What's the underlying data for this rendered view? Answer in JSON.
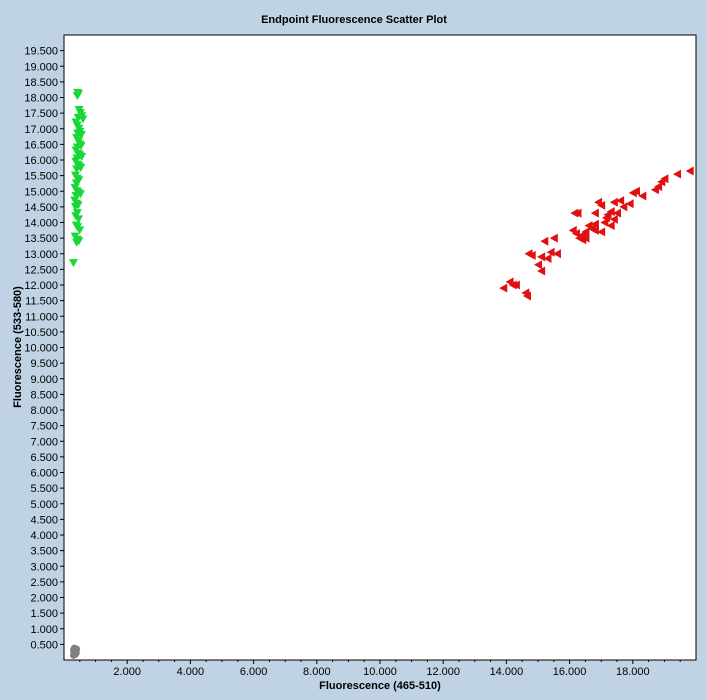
{
  "chart_data": {
    "type": "scatter",
    "title": "Endpoint Fluorescence Scatter Plot",
    "xlabel": "Fluorescence (465-510)",
    "ylabel": "Fluorescence (533-580)",
    "xlim": [
      0,
      20000
    ],
    "ylim": [
      0,
      20000
    ],
    "x_ticks": [
      2000,
      4000,
      6000,
      8000,
      10000,
      12000,
      14000,
      16000,
      18000
    ],
    "x_tick_labels": [
      "2.000",
      "4.000",
      "6.000",
      "8.000",
      "10.000",
      "12.000",
      "14.000",
      "16.000",
      "18.000"
    ],
    "y_ticks": [
      500,
      1000,
      1500,
      2000,
      2500,
      3000,
      3500,
      4000,
      4500,
      5000,
      5500,
      6000,
      6500,
      7000,
      7500,
      8000,
      8500,
      9000,
      9500,
      10000,
      10500,
      11000,
      11500,
      12000,
      12500,
      13000,
      13500,
      14000,
      14500,
      15000,
      15500,
      16000,
      16500,
      17000,
      17500,
      18000,
      18500,
      19000,
      19500
    ],
    "y_tick_labels": [
      "0.500",
      "1.000",
      "1.500",
      "2.000",
      "2.500",
      "3.000",
      "3.500",
      "4.000",
      "4.500",
      "5.000",
      "5.500",
      "6.000",
      "6.500",
      "7.000",
      "7.500",
      "8.000",
      "8.500",
      "9.000",
      "9.500",
      "10.000",
      "10.500",
      "11.000",
      "11.500",
      "12.000",
      "12.500",
      "13.000",
      "13.500",
      "14.000",
      "14.500",
      "15.000",
      "15.500",
      "16.000",
      "16.500",
      "17.000",
      "17.500",
      "18.000",
      "18.500",
      "19.000",
      "19.500"
    ],
    "grid": false,
    "series": [
      {
        "marker": "triangle-down",
        "color": "#18d838",
        "points": [
          [
            430,
            18150
          ],
          [
            460,
            18100
          ],
          [
            420,
            18050
          ],
          [
            480,
            17600
          ],
          [
            520,
            17500
          ],
          [
            560,
            17400
          ],
          [
            600,
            17300
          ],
          [
            450,
            17350
          ],
          [
            380,
            17200
          ],
          [
            420,
            17100
          ],
          [
            470,
            17000
          ],
          [
            510,
            16900
          ],
          [
            550,
            16800
          ],
          [
            430,
            16850
          ],
          [
            400,
            16700
          ],
          [
            460,
            16600
          ],
          [
            500,
            16500
          ],
          [
            540,
            16450
          ],
          [
            420,
            16400
          ],
          [
            380,
            16300
          ],
          [
            450,
            16200
          ],
          [
            500,
            16150
          ],
          [
            560,
            16100
          ],
          [
            410,
            16050
          ],
          [
            370,
            15950
          ],
          [
            430,
            15850
          ],
          [
            480,
            15800
          ],
          [
            530,
            15750
          ],
          [
            400,
            15700
          ],
          [
            360,
            15500
          ],
          [
            420,
            15400
          ],
          [
            470,
            15350
          ],
          [
            390,
            15250
          ],
          [
            350,
            15100
          ],
          [
            410,
            15000
          ],
          [
            460,
            14950
          ],
          [
            520,
            14900
          ],
          [
            380,
            14850
          ],
          [
            340,
            14700
          ],
          [
            400,
            14600
          ],
          [
            450,
            14550
          ],
          [
            360,
            14500
          ],
          [
            420,
            14300
          ],
          [
            370,
            14200
          ],
          [
            460,
            14100
          ],
          [
            390,
            13900
          ],
          [
            430,
            13850
          ],
          [
            500,
            13750
          ],
          [
            350,
            13550
          ],
          [
            420,
            13450
          ],
          [
            470,
            13400
          ],
          [
            400,
            13350
          ],
          [
            300,
            12700
          ]
        ]
      },
      {
        "marker": "triangle-left",
        "color": "#e01010",
        "points": [
          [
            19800,
            15650
          ],
          [
            19400,
            15550
          ],
          [
            19000,
            15400
          ],
          [
            18900,
            15300
          ],
          [
            18800,
            15150
          ],
          [
            18700,
            15050
          ],
          [
            18300,
            14850
          ],
          [
            18100,
            15000
          ],
          [
            18000,
            14950
          ],
          [
            17900,
            14600
          ],
          [
            17700,
            14500
          ],
          [
            17600,
            14700
          ],
          [
            17400,
            14650
          ],
          [
            17300,
            14350
          ],
          [
            17200,
            14250
          ],
          [
            17500,
            14300
          ],
          [
            17150,
            14150
          ],
          [
            17400,
            14100
          ],
          [
            17000,
            14550
          ],
          [
            16900,
            14650
          ],
          [
            16800,
            14300
          ],
          [
            17100,
            14000
          ],
          [
            17300,
            13900
          ],
          [
            16800,
            13950
          ],
          [
            16700,
            13800
          ],
          [
            16600,
            13900
          ],
          [
            16500,
            13700
          ],
          [
            16800,
            13750
          ],
          [
            16400,
            13600
          ],
          [
            16300,
            13500
          ],
          [
            16200,
            13650
          ],
          [
            16100,
            13750
          ],
          [
            16500,
            13500
          ],
          [
            16400,
            13450
          ],
          [
            16250,
            14300
          ],
          [
            16150,
            14300
          ],
          [
            17000,
            13700
          ],
          [
            15500,
            13500
          ],
          [
            15200,
            13400
          ],
          [
            15600,
            13000
          ],
          [
            15400,
            13050
          ],
          [
            15300,
            12850
          ],
          [
            15100,
            12900
          ],
          [
            14800,
            12950
          ],
          [
            14700,
            13000
          ],
          [
            15000,
            12650
          ],
          [
            15100,
            12450
          ],
          [
            14300,
            12000
          ],
          [
            14200,
            12000
          ],
          [
            14100,
            12100
          ],
          [
            13900,
            11900
          ],
          [
            14600,
            11750
          ],
          [
            14650,
            11650
          ]
        ]
      },
      {
        "marker": "circle",
        "color": "#808080",
        "points": [
          [
            300,
            320
          ],
          [
            350,
            260
          ],
          [
            380,
            300
          ],
          [
            320,
            220
          ],
          [
            400,
            350
          ],
          [
            330,
            380
          ],
          [
            360,
            180
          ],
          [
            300,
            150
          ],
          [
            390,
            230
          ],
          [
            340,
            300
          ]
        ]
      }
    ]
  }
}
